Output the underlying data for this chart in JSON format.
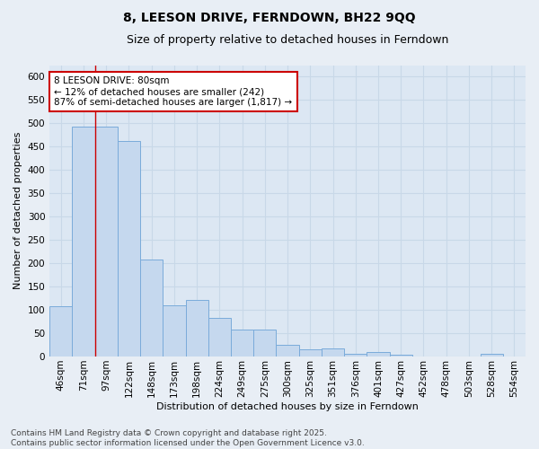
{
  "title": "8, LEESON DRIVE, FERNDOWN, BH22 9QQ",
  "subtitle": "Size of property relative to detached houses in Ferndown",
  "xlabel": "Distribution of detached houses by size in Ferndown",
  "ylabel": "Number of detached properties",
  "footer": "Contains HM Land Registry data © Crown copyright and database right 2025.\nContains public sector information licensed under the Open Government Licence v3.0.",
  "categories": [
    "46sqm",
    "71sqm",
    "97sqm",
    "122sqm",
    "148sqm",
    "173sqm",
    "198sqm",
    "224sqm",
    "249sqm",
    "275sqm",
    "300sqm",
    "325sqm",
    "351sqm",
    "376sqm",
    "401sqm",
    "427sqm",
    "452sqm",
    "478sqm",
    "503sqm",
    "528sqm",
    "554sqm"
  ],
  "values": [
    107,
    493,
    493,
    462,
    208,
    110,
    122,
    83,
    57,
    57,
    25,
    15,
    18,
    5,
    10,
    3,
    0,
    0,
    0,
    5,
    0
  ],
  "bar_color": "#c5d8ee",
  "bar_edge_color": "#7aabda",
  "annotation_text": "8 LEESON DRIVE: 80sqm\n← 12% of detached houses are smaller (242)\n87% of semi-detached houses are larger (1,817) →",
  "annotation_box_color": "#cc0000",
  "vline_x_index": 1.5,
  "ylim": [
    0,
    625
  ],
  "yticks": [
    0,
    50,
    100,
    150,
    200,
    250,
    300,
    350,
    400,
    450,
    500,
    550,
    600
  ],
  "background_color": "#e8eef5",
  "plot_bg_color": "#dce7f3",
  "grid_color": "#c8d8e8",
  "title_fontsize": 10,
  "subtitle_fontsize": 9,
  "axis_label_fontsize": 8,
  "tick_fontsize": 7.5,
  "annotation_fontsize": 7.5,
  "footer_fontsize": 6.5
}
